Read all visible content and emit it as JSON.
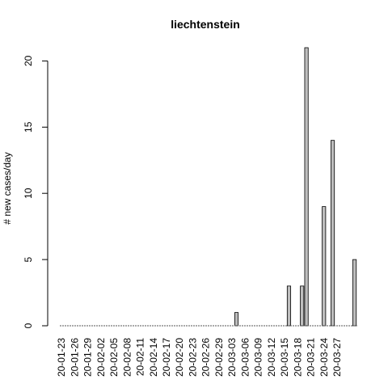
{
  "chart_data": {
    "type": "bar",
    "title": "liechtenstein",
    "ylabel": "# new cases/day",
    "xlabel": "",
    "ylim": [
      0,
      21
    ],
    "yticks": [
      0,
      5,
      10,
      15,
      20
    ],
    "x_tick_labels": [
      "20-01-23",
      "20-01-26",
      "20-01-29",
      "20-02-02",
      "20-02-05",
      "20-02-08",
      "20-02-11",
      "20-02-14",
      "20-02-17",
      "20-02-20",
      "20-02-23",
      "20-02-26",
      "20-02-29",
      "20-03-03",
      "20-03-06",
      "20-03-09",
      "20-03-12",
      "20-03-15",
      "20-03-18",
      "20-03-21",
      "20-03-24",
      "20-03-27"
    ],
    "start_date": "2020-01-23",
    "values": [
      0,
      0,
      0,
      0,
      0,
      0,
      0,
      0,
      0,
      0,
      0,
      0,
      0,
      0,
      0,
      0,
      0,
      0,
      0,
      0,
      0,
      0,
      0,
      0,
      0,
      0,
      0,
      0,
      0,
      0,
      0,
      0,
      0,
      0,
      0,
      0,
      0,
      0,
      0,
      0,
      1,
      0,
      0,
      0,
      0,
      0,
      0,
      0,
      0,
      0,
      0,
      0,
      3,
      0,
      0,
      3,
      21,
      0,
      0,
      0,
      9,
      0,
      14,
      0,
      0,
      0,
      0,
      5
    ],
    "bar_color": "#bebebe",
    "grid": false,
    "legend": "none"
  }
}
